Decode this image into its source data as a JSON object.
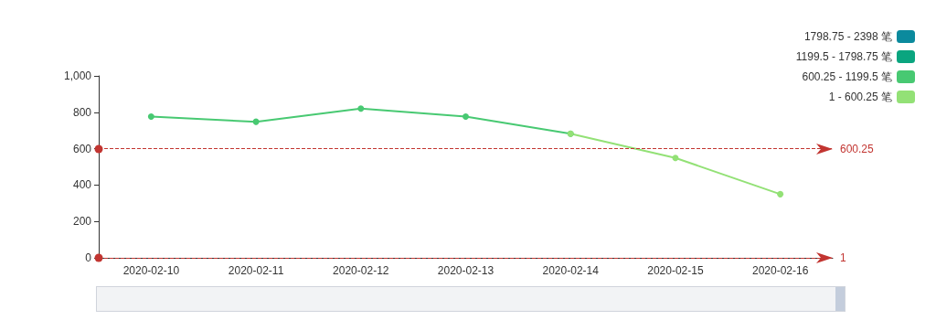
{
  "chart_data": {
    "type": "line",
    "categories": [
      "2020-02-10",
      "2020-02-11",
      "2020-02-12",
      "2020-02-13",
      "2020-02-14",
      "2020-02-15",
      "2020-02-16"
    ],
    "series": [
      {
        "name": "1798.75 - 2398 笔",
        "color": "#0b8a9d",
        "values": [
          null,
          null,
          null,
          null,
          null,
          null,
          null
        ]
      },
      {
        "name": "1199.5 - 1798.75 笔",
        "color": "#0aa57f",
        "values": [
          null,
          null,
          null,
          null,
          null,
          null,
          null
        ]
      },
      {
        "name": "600.25 - 1199.5 笔",
        "color": "#48c972",
        "values": [
          776,
          748,
          820,
          776,
          682,
          null,
          null
        ]
      },
      {
        "name": "1 - 600.25 笔",
        "color": "#93e176",
        "values": [
          null,
          null,
          null,
          null,
          682,
          549,
          350
        ]
      }
    ],
    "ylim": [
      0,
      1000
    ],
    "yticks": [
      0,
      200,
      400,
      600,
      800,
      {
        "value": 1000,
        "label": "1,000"
      }
    ],
    "marker": "circle",
    "grid": false,
    "legend": "top right",
    "ref_lines": [
      {
        "axis": "y",
        "value": 600.25,
        "label": "600.25",
        "color": "#c23531",
        "line_style": "dashed"
      },
      {
        "axis": "y",
        "value": 1,
        "label": "1",
        "color": "#c23531",
        "line_style": "dashed"
      }
    ]
  }
}
